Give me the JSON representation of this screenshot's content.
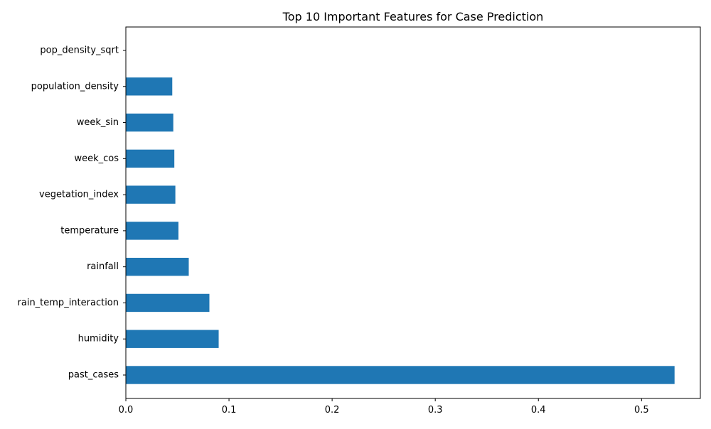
{
  "chart_data": {
    "type": "bar",
    "orientation": "horizontal",
    "title": "Top 10 Important Features for Case Prediction",
    "xlabel": "",
    "ylabel": "",
    "categories": [
      "past_cases",
      "humidity",
      "rain_temp_interaction",
      "rainfall",
      "temperature",
      "vegetation_index",
      "week_cos",
      "week_sin",
      "population_density",
      "pop_density_sqrt"
    ],
    "values": [
      0.532,
      0.09,
      0.081,
      0.061,
      0.051,
      0.048,
      0.047,
      0.046,
      0.045,
      0.0
    ],
    "xlim": [
      0,
      0.557
    ],
    "x_ticks": [
      0.0,
      0.1,
      0.2,
      0.3,
      0.4,
      0.5
    ],
    "x_tick_labels": [
      "0.0",
      "0.1",
      "0.2",
      "0.3",
      "0.4",
      "0.5"
    ],
    "grid": false,
    "bar_color": "#1f77b4"
  }
}
